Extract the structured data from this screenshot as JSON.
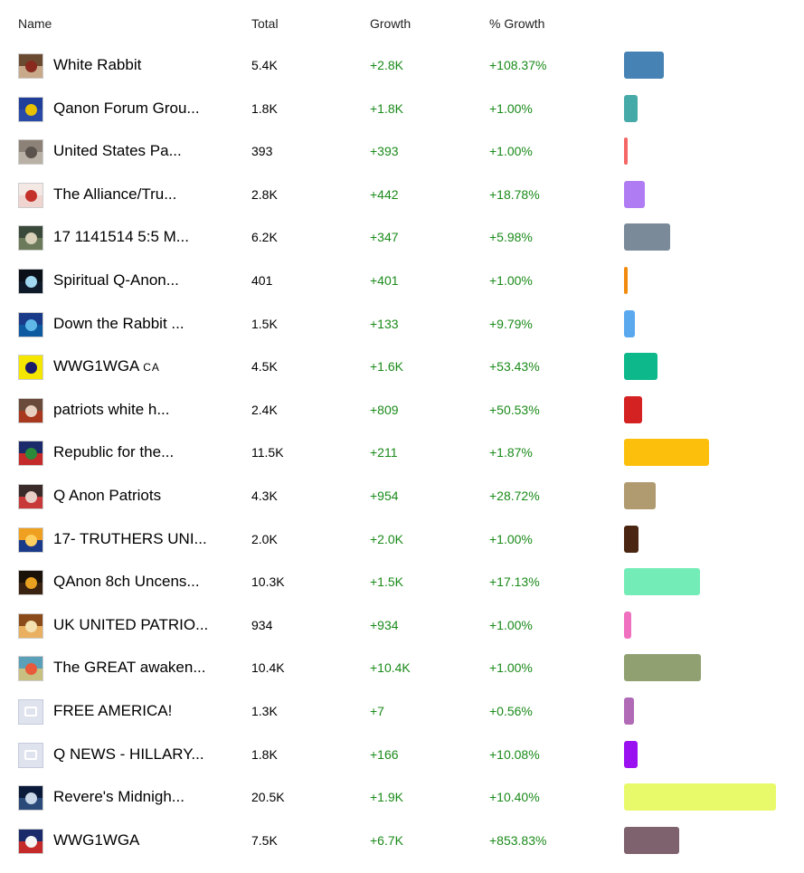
{
  "header": {
    "name": "Name",
    "total": "Total",
    "growth": "Growth",
    "pct_growth": "% Growth"
  },
  "chart_data": {
    "type": "table",
    "value_max": 20500,
    "rows": [
      {
        "name": "White Rabbit",
        "suffix": "",
        "total": "5.4K",
        "total_value": 5400,
        "growth": "+2.8K",
        "pct": "+108.37%",
        "bar_color": "#4682b4",
        "avatar": [
          "#6b4a32",
          "#c8a98a",
          "#8a2a1e"
        ],
        "placeholder": false
      },
      {
        "name": "Qanon Forum Grou...",
        "suffix": "",
        "total": "1.8K",
        "total_value": 1800,
        "growth": "+1.8K",
        "pct": "+1.00%",
        "bar_color": "#45aaa8",
        "avatar": [
          "#1f3f9a",
          "#2a4aa8",
          "#e8c200"
        ],
        "placeholder": false
      },
      {
        "name": "United States Pa...",
        "suffix": "",
        "total": "393",
        "total_value": 393,
        "growth": "+393",
        "pct": "+1.00%",
        "bar_color": "#f56666",
        "avatar": [
          "#8c8278",
          "#b9b0a6",
          "#5a524c"
        ],
        "placeholder": false
      },
      {
        "name": "The Alliance/Tru...",
        "suffix": "",
        "total": "2.8K",
        "total_value": 2800,
        "growth": "+442",
        "pct": "+18.78%",
        "bar_color": "#b07cf4",
        "avatar": [
          "#f4e8e4",
          "#f0d4d0",
          "#c4302a"
        ],
        "placeholder": false
      },
      {
        "name": "17 1141514 5:5 M...",
        "suffix": "",
        "total": "6.2K",
        "total_value": 6200,
        "growth": "+347",
        "pct": "+5.98%",
        "bar_color": "#7a8a99",
        "avatar": [
          "#3a4a3a",
          "#6a7a5a",
          "#d8d0b8"
        ],
        "placeholder": false
      },
      {
        "name": "Spiritual Q-Anon...",
        "suffix": "",
        "total": "401",
        "total_value": 401,
        "growth": "+401",
        "pct": "+1.00%",
        "bar_color": "#f28b0c",
        "avatar": [
          "#0a0f18",
          "#0e1a2a",
          "#9fd8f0"
        ],
        "placeholder": false
      },
      {
        "name": "Down the Rabbit ...",
        "suffix": "",
        "total": "1.5K",
        "total_value": 1500,
        "growth": "+133",
        "pct": "+9.79%",
        "bar_color": "#5aa8ee",
        "avatar": [
          "#1a3a8a",
          "#0e5aa0",
          "#5fb8e8"
        ],
        "placeholder": false
      },
      {
        "name": "WWG1WGA",
        "suffix": "CA",
        "total": "4.5K",
        "total_value": 4500,
        "growth": "+1.6K",
        "pct": "+53.43%",
        "bar_color": "#0db88a",
        "avatar": [
          "#f4e600",
          "#f4e600",
          "#1a1a6a"
        ],
        "placeholder": false
      },
      {
        "name": "patriots white h...",
        "suffix": "",
        "total": "2.4K",
        "total_value": 2400,
        "growth": "+809",
        "pct": "+50.53%",
        "bar_color": "#d42222",
        "avatar": [
          "#6a4a3a",
          "#a8381e",
          "#e8d0c0"
        ],
        "placeholder": false
      },
      {
        "name": "Republic for the...",
        "suffix": "",
        "total": "11.5K",
        "total_value": 11500,
        "growth": "+211",
        "pct": "+1.87%",
        "bar_color": "#fcc00c",
        "avatar": [
          "#1a2a6a",
          "#c42a2a",
          "#2a8a3a"
        ],
        "placeholder": false
      },
      {
        "name": "Q Anon Patriots",
        "suffix": "",
        "total": "4.3K",
        "total_value": 4300,
        "growth": "+954",
        "pct": "+28.72%",
        "bar_color": "#b09a70",
        "avatar": [
          "#3a2a2a",
          "#c83a3a",
          "#e8d0c8"
        ],
        "placeholder": false
      },
      {
        "name": "17- TRUTHERS UNI...",
        "suffix": "",
        "total": "2.0K",
        "total_value": 2000,
        "growth": "+2.0K",
        "pct": "+1.00%",
        "bar_color": "#4a2612",
        "avatar": [
          "#f0a020",
          "#1a3a8a",
          "#ffd060"
        ],
        "placeholder": false
      },
      {
        "name": "QAnon 8ch Uncens...",
        "suffix": "",
        "total": "10.3K",
        "total_value": 10300,
        "growth": "+1.5K",
        "pct": "+17.13%",
        "bar_color": "#74ecb8",
        "avatar": [
          "#1a1208",
          "#3a2210",
          "#e8a020"
        ],
        "placeholder": false
      },
      {
        "name": "UK UNITED PATRIO...",
        "suffix": "",
        "total": "934",
        "total_value": 934,
        "growth": "+934",
        "pct": "+1.00%",
        "bar_color": "#f070c0",
        "avatar": [
          "#8a4a1a",
          "#e8b060",
          "#f4e0b0"
        ],
        "placeholder": false
      },
      {
        "name": "The GREAT awaken...",
        "suffix": "",
        "total": "10.4K",
        "total_value": 10400,
        "growth": "+10.4K",
        "pct": "+1.00%",
        "bar_color": "#90a070",
        "avatar": [
          "#5aa0b8",
          "#c8c080",
          "#e85a3a"
        ],
        "placeholder": false
      },
      {
        "name": "FREE AMERICA!",
        "suffix": "",
        "total": "1.3K",
        "total_value": 1300,
        "growth": "+7",
        "pct": "+0.56%",
        "bar_color": "#b06ab6",
        "avatar": [
          "#dfe3ee",
          "#dfe3ee",
          "#dfe3ee"
        ],
        "placeholder": true
      },
      {
        "name": "Q NEWS - HILLARY...",
        "suffix": "",
        "total": "1.8K",
        "total_value": 1800,
        "growth": "+166",
        "pct": "+10.08%",
        "bar_color": "#9a10f0",
        "avatar": [
          "#dfe3ee",
          "#dfe3ee",
          "#dfe3ee"
        ],
        "placeholder": true
      },
      {
        "name": "Revere's Midnigh...",
        "suffix": "",
        "total": "20.5K",
        "total_value": 20500,
        "growth": "+1.9K",
        "pct": "+10.40%",
        "bar_color": "#e8fa6a",
        "avatar": [
          "#0a1a3a",
          "#2a4a7a",
          "#c8d8e8"
        ],
        "placeholder": false
      },
      {
        "name": "WWG1WGA",
        "suffix": "",
        "total": "7.5K",
        "total_value": 7500,
        "growth": "+6.7K",
        "pct": "+853.83%",
        "bar_color": "#7e626e",
        "avatar": [
          "#1a2a6a",
          "#c42a2a",
          "#f4f4f4"
        ],
        "placeholder": false
      }
    ]
  }
}
